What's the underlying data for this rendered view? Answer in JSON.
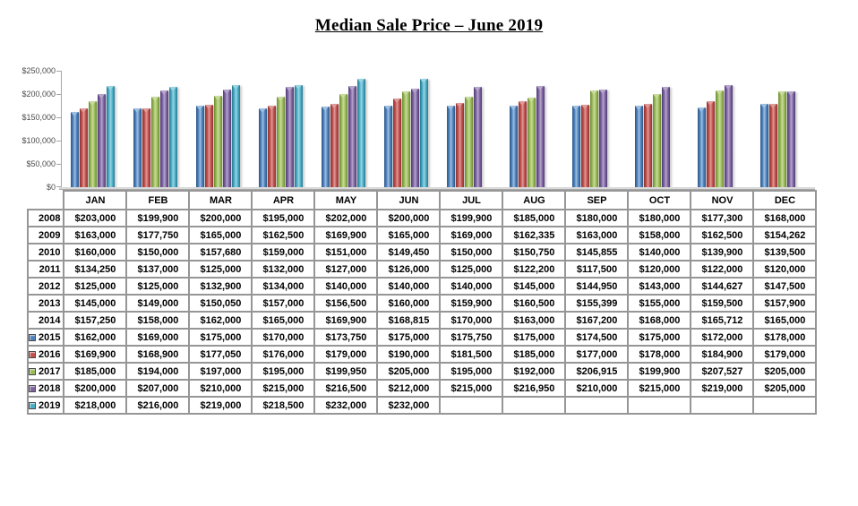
{
  "title": "Median Sale Price – June 2019",
  "chart_data": {
    "type": "bar",
    "title": "Median Sale Price – June 2019",
    "xlabel": "",
    "ylabel": "",
    "ylim": [
      0,
      250000
    ],
    "grid": false,
    "legend_position": "none (legend keys shown in table year column)",
    "y_ticks": [
      "$250,000",
      "$200,000",
      "$150,000",
      "$100,000",
      "$50,000",
      "$0"
    ],
    "categories": [
      "JAN",
      "FEB",
      "MAR",
      "APR",
      "MAY",
      "JUN",
      "JUL",
      "AUG",
      "SEP",
      "OCT",
      "NOV",
      "DEC"
    ],
    "series": [
      {
        "name": "2015",
        "color": "#4F81BD",
        "shades": {
          "dark": "#2C5784",
          "light": "#9DC0E2"
        },
        "values": [
          162000,
          169000,
          175000,
          170000,
          173750,
          175000,
          175750,
          175000,
          174500,
          175000,
          172000,
          178000
        ]
      },
      {
        "name": "2016",
        "color": "#C0504D",
        "shades": {
          "dark": "#8E3330",
          "light": "#DE9B99"
        },
        "values": [
          169900,
          168900,
          177050,
          176000,
          179000,
          190000,
          181500,
          185000,
          177000,
          178000,
          184900,
          179000
        ]
      },
      {
        "name": "2017",
        "color": "#9BBB59",
        "shades": {
          "dark": "#6A8A33",
          "light": "#C9DB9D"
        },
        "values": [
          185000,
          194000,
          197000,
          195000,
          199950,
          205000,
          195000,
          192000,
          206915,
          199900,
          207527,
          205000
        ]
      },
      {
        "name": "2018",
        "color": "#8064A2",
        "shades": {
          "dark": "#4E3C73",
          "light": "#B5A6CB"
        },
        "values": [
          200000,
          207000,
          210000,
          215000,
          216500,
          212000,
          215000,
          216950,
          210000,
          215000,
          219000,
          205000
        ]
      },
      {
        "name": "2019",
        "color": "#4BACC6",
        "shades": {
          "dark": "#26798F",
          "light": "#9AD4E2"
        },
        "values": [
          218000,
          216000,
          219000,
          218500,
          232000,
          232000,
          null,
          null,
          null,
          null,
          null,
          null
        ]
      }
    ]
  },
  "table": {
    "columns": [
      "JAN",
      "FEB",
      "MAR",
      "APR",
      "MAY",
      "JUN",
      "JUL",
      "AUG",
      "SEP",
      "OCT",
      "NOV",
      "DEC"
    ],
    "rows": [
      {
        "year": "2008",
        "marker": null,
        "values": [
          "$203,000",
          "$199,900",
          "$200,000",
          "$195,000",
          "$202,000",
          "$200,000",
          "$199,900",
          "$185,000",
          "$180,000",
          "$180,000",
          "$177,300",
          "$168,000"
        ]
      },
      {
        "year": "2009",
        "marker": null,
        "values": [
          "$163,000",
          "$177,750",
          "$165,000",
          "$162,500",
          "$169,900",
          "$165,000",
          "$169,000",
          "$162,335",
          "$163,000",
          "$158,000",
          "$162,500",
          "$154,262"
        ]
      },
      {
        "year": "2010",
        "marker": null,
        "values": [
          "$160,000",
          "$150,000",
          "$157,680",
          "$159,000",
          "$151,000",
          "$149,450",
          "$150,000",
          "$150,750",
          "$145,855",
          "$140,000",
          "$139,900",
          "$139,500"
        ]
      },
      {
        "year": "2011",
        "marker": null,
        "values": [
          "$134,250",
          "$137,000",
          "$125,000",
          "$132,000",
          "$127,000",
          "$126,000",
          "$125,000",
          "$122,200",
          "$117,500",
          "$120,000",
          "$122,000",
          "$120,000"
        ]
      },
      {
        "year": "2012",
        "marker": null,
        "values": [
          "$125,000",
          "$125,000",
          "$132,900",
          "$134,000",
          "$140,000",
          "$140,000",
          "$140,000",
          "$145,000",
          "$144,950",
          "$143,000",
          "$144,627",
          "$147,500"
        ]
      },
      {
        "year": "2013",
        "marker": null,
        "values": [
          "$145,000",
          "$149,000",
          "$150,050",
          "$157,000",
          "$156,500",
          "$160,000",
          "$159,900",
          "$160,500",
          "$155,399",
          "$155,000",
          "$159,500",
          "$157,900"
        ]
      },
      {
        "year": "2014",
        "marker": null,
        "values": [
          "$157,250",
          "$158,000",
          "$162,000",
          "$165,000",
          "$169,900",
          "$168,815",
          "$170,000",
          "$163,000",
          "$167,200",
          "$168,000",
          "$165,712",
          "$165,000"
        ]
      },
      {
        "year": "2015",
        "marker": "#4F81BD",
        "values": [
          "$162,000",
          "$169,000",
          "$175,000",
          "$170,000",
          "$173,750",
          "$175,000",
          "$175,750",
          "$175,000",
          "$174,500",
          "$175,000",
          "$172,000",
          "$178,000"
        ]
      },
      {
        "year": "2016",
        "marker": "#C0504D",
        "values": [
          "$169,900",
          "$168,900",
          "$177,050",
          "$176,000",
          "$179,000",
          "$190,000",
          "$181,500",
          "$185,000",
          "$177,000",
          "$178,000",
          "$184,900",
          "$179,000"
        ]
      },
      {
        "year": "2017",
        "marker": "#9BBB59",
        "values": [
          "$185,000",
          "$194,000",
          "$197,000",
          "$195,000",
          "$199,950",
          "$205,000",
          "$195,000",
          "$192,000",
          "$206,915",
          "$199,900",
          "$207,527",
          "$205,000"
        ]
      },
      {
        "year": "2018",
        "marker": "#8064A2",
        "values": [
          "$200,000",
          "$207,000",
          "$210,000",
          "$215,000",
          "$216,500",
          "$212,000",
          "$215,000",
          "$216,950",
          "$210,000",
          "$215,000",
          "$219,000",
          "$205,000"
        ]
      },
      {
        "year": "2019",
        "marker": "#4BACC6",
        "values": [
          "$218,000",
          "$216,000",
          "$219,000",
          "$218,500",
          "$232,000",
          "$232,000",
          "",
          "",
          "",
          "",
          "",
          ""
        ]
      }
    ]
  }
}
